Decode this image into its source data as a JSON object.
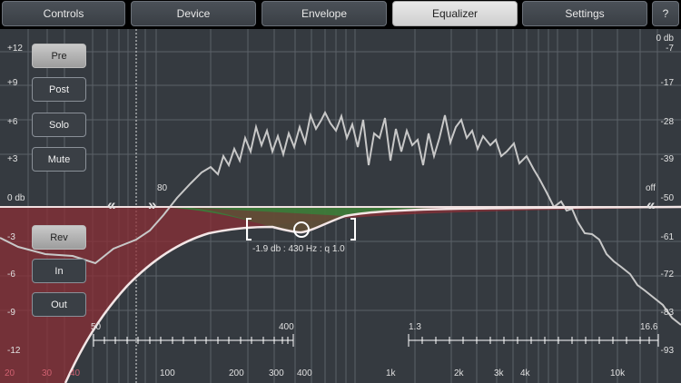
{
  "tabs": [
    {
      "label": "Controls",
      "active": false
    },
    {
      "label": "Device",
      "active": false
    },
    {
      "label": "Envelope",
      "active": false
    },
    {
      "label": "Equalizer",
      "active": true
    },
    {
      "label": "Settings",
      "active": false
    },
    {
      "label": "?",
      "active": false
    }
  ],
  "buttons_top": [
    {
      "label": "Pre",
      "on": true
    },
    {
      "label": "Post",
      "on": false
    },
    {
      "label": "Solo",
      "on": false
    },
    {
      "label": "Mute",
      "on": false
    }
  ],
  "buttons_bottom": [
    {
      "label": "Rev",
      "on": true
    },
    {
      "label": "In",
      "on": false
    },
    {
      "label": "Out",
      "on": false
    }
  ],
  "eq_axis_labels": [
    "+12",
    "+9",
    "+6",
    "+3",
    "0 db",
    "-3",
    "-6",
    "-9",
    "-12"
  ],
  "spectrum_axis_labels": [
    "0 db",
    "-7",
    "-17",
    "-28",
    "-39",
    "-50",
    "-61",
    "-72",
    "-83",
    "-93"
  ],
  "freq_labels": [
    "20",
    "30",
    "40",
    "100",
    "200",
    "300",
    "400",
    "1k",
    "2k",
    "3k",
    "4k",
    "10k"
  ],
  "highpass_label": "80",
  "lowpass_label": "off",
  "band_readout": "-1.9 db : 430 Hz : q 1.0",
  "zoom_scale": {
    "left_start": "50",
    "left_end": "400",
    "right_start": "1.3",
    "right_end": "16.6"
  },
  "arrows": {
    "left": "«",
    "right": "«"
  },
  "colors": {
    "accent": "#ffffff",
    "cut_fill": "#8a2f36",
    "boost_fill": "#2f8a3a",
    "plot_bg": "#353a40"
  }
}
